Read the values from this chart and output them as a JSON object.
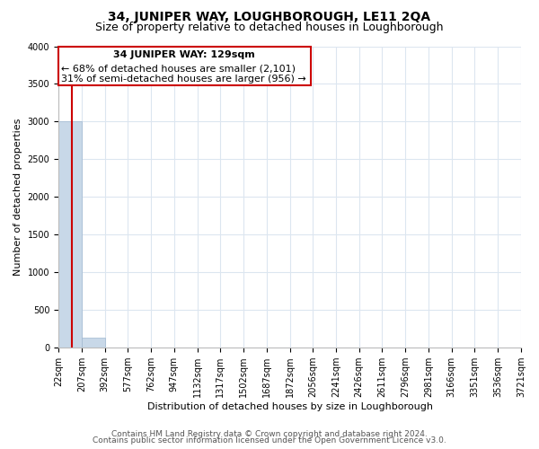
{
  "title": "34, JUNIPER WAY, LOUGHBOROUGH, LE11 2QA",
  "subtitle": "Size of property relative to detached houses in Loughborough",
  "xlabel": "Distribution of detached houses by size in Loughborough",
  "ylabel": "Number of detached properties",
  "bin_edges": [
    22,
    207,
    392,
    577,
    762,
    947,
    1132,
    1317,
    1502,
    1687,
    1872,
    2056,
    2241,
    2426,
    2611,
    2796,
    2981,
    3166,
    3351,
    3536,
    3721
  ],
  "bar_heights": [
    3000,
    130,
    0,
    0,
    0,
    0,
    0,
    0,
    0,
    0,
    0,
    0,
    0,
    0,
    0,
    0,
    0,
    0,
    0,
    0
  ],
  "bar_color": "#c8d8e8",
  "bar_edge_color": "#a0b8d0",
  "property_size": 129,
  "vline_color": "#cc0000",
  "annotation_title": "34 JUNIPER WAY: 129sqm",
  "annotation_line1": "← 68% of detached houses are smaller (2,101)",
  "annotation_line2": "31% of semi-detached houses are larger (956) →",
  "annotation_box_color": "#cc0000",
  "annotation_bg_color": "#ffffff",
  "ylim": [
    0,
    4000
  ],
  "yticks": [
    0,
    500,
    1000,
    1500,
    2000,
    2500,
    3000,
    3500,
    4000
  ],
  "grid_color": "#dce6f0",
  "background_color": "#ffffff",
  "footer_line1": "Contains HM Land Registry data © Crown copyright and database right 2024.",
  "footer_line2": "Contains public sector information licensed under the Open Government Licence v3.0.",
  "title_fontsize": 10,
  "subtitle_fontsize": 9,
  "tick_label_fontsize": 7,
  "axis_label_fontsize": 8,
  "footer_fontsize": 6.5,
  "annot_title_fontsize": 8,
  "annot_text_fontsize": 8
}
